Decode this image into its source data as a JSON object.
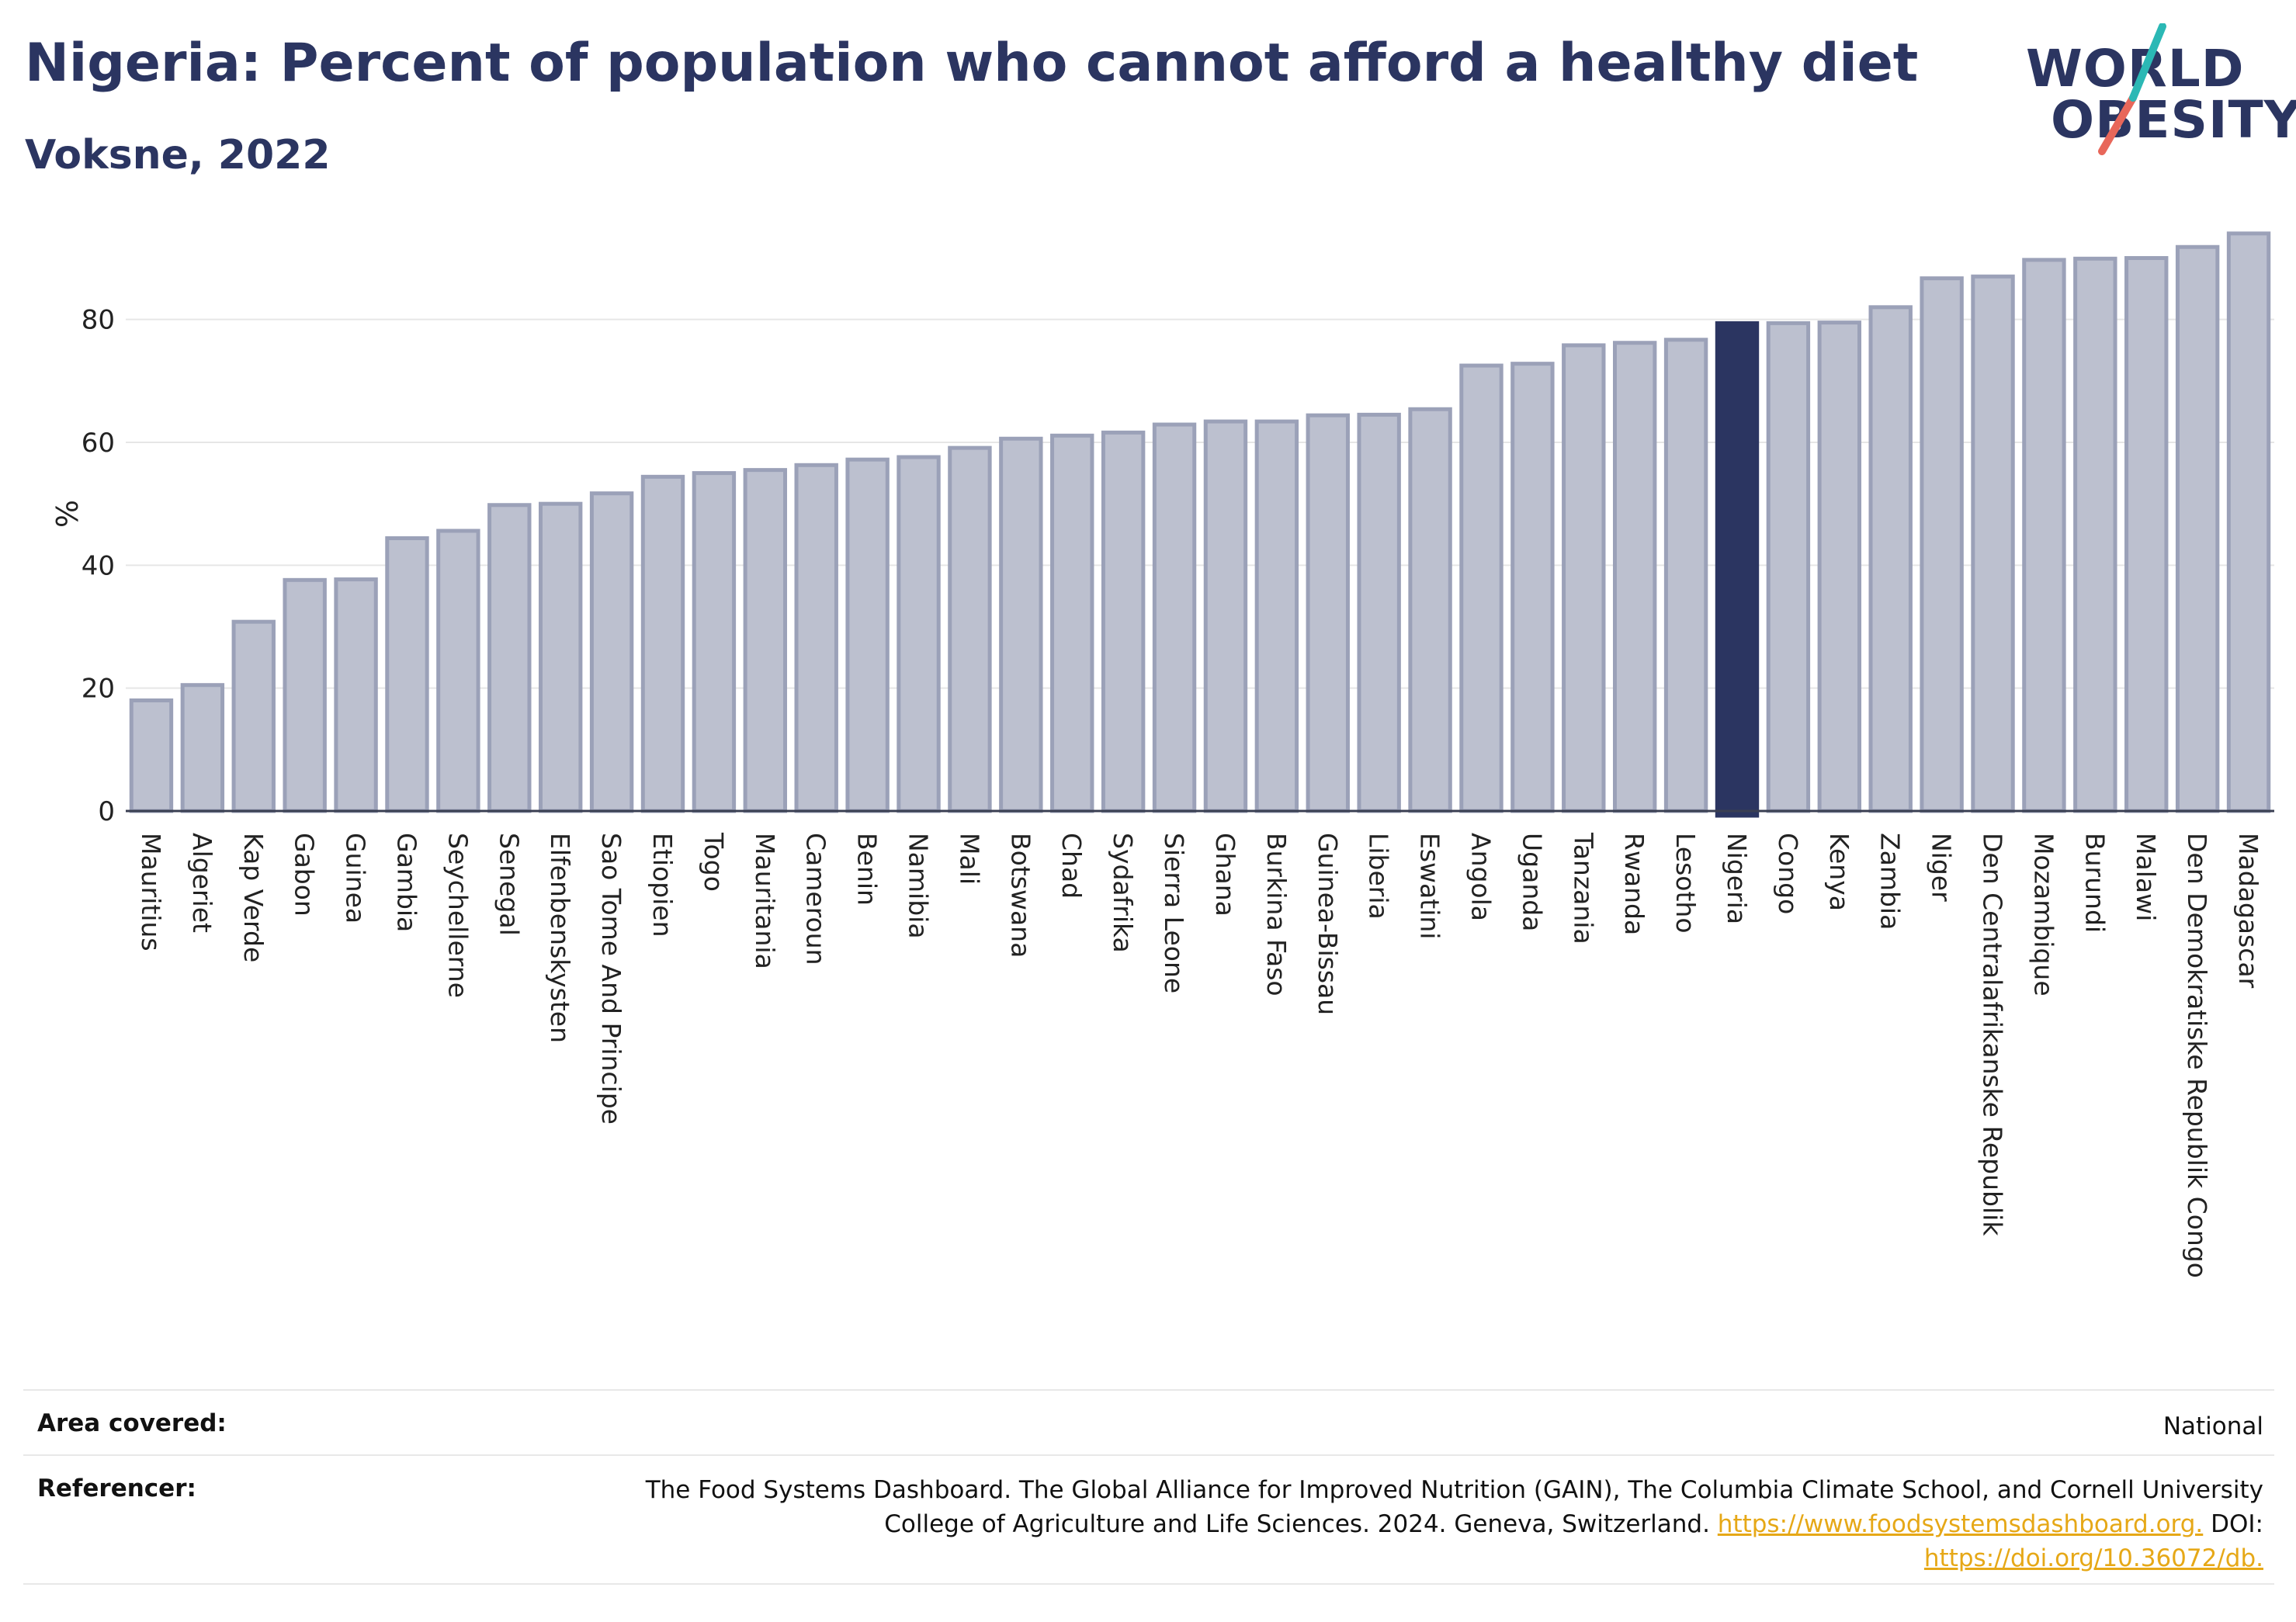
{
  "header": {
    "title": "Nigeria: Percent of population who cannot afford a healthy diet",
    "subtitle": "Voksne, 2022"
  },
  "logo": {
    "line1": "WORLD",
    "line2": "OBESITY"
  },
  "colors": {
    "bar": "#bcc0cf",
    "bar_stroke": "#9ba1b8",
    "highlight": "#2b3561",
    "title": "#2b3561",
    "link": "#e6a817"
  },
  "chart_data": {
    "type": "bar",
    "title": "Nigeria: Percent of population who cannot afford a healthy diet",
    "subtitle": "Voksne, 2022",
    "ylabel": "%",
    "xlabel": "",
    "ylim": [
      0,
      96
    ],
    "yticks": [
      0,
      20,
      40,
      60,
      80
    ],
    "grid": true,
    "highlight": "Nigeria",
    "categories": [
      "Mauritius",
      "Algeriet",
      "Kap Verde",
      "Gabon",
      "Guinea",
      "Gambia",
      "Seychellerne",
      "Senegal",
      "Elfenbenskysten",
      "Sao Tome And Principe",
      "Etiopien",
      "Togo",
      "Mauritania",
      "Cameroun",
      "Benin",
      "Namibia",
      "Mali",
      "Botswana",
      "Chad",
      "Sydafrika",
      "Sierra Leone",
      "Ghana",
      "Burkina Faso",
      "Guinea-Bissau",
      "Liberia",
      "Eswatini",
      "Angola",
      "Uganda",
      "Tanzania",
      "Rwanda",
      "Lesotho",
      "Nigeria",
      "Congo",
      "Kenya",
      "Zambia",
      "Niger",
      "Den Centralafrikanske Republik",
      "Mozambique",
      "Burundi",
      "Malawi",
      "Den Demokratiske Republik Congo",
      "Madagascar"
    ],
    "values": [
      18.0,
      20.5,
      30.8,
      37.6,
      37.7,
      44.4,
      45.6,
      49.8,
      50.0,
      51.7,
      54.4,
      55.0,
      55.5,
      56.3,
      57.2,
      57.6,
      59.1,
      60.6,
      61.1,
      61.6,
      62.9,
      63.4,
      63.4,
      64.4,
      64.5,
      65.4,
      72.5,
      72.8,
      75.8,
      76.2,
      76.7,
      79.4,
      79.4,
      79.5,
      82.0,
      86.7,
      87.0,
      89.7,
      89.9,
      90.0,
      91.8,
      94.0
    ]
  },
  "info": {
    "area_label": "Area covered:",
    "area_value": "National",
    "ref_label": "Referencer:",
    "ref_line1": "The Food Systems Dashboard. The Global Alliance for Improved Nutrition (GAIN), The Columbia Climate School, and Cornell University",
    "ref_line2_text": "College of Agriculture and Life Sciences. 2024. Geneva, Switzerland.",
    "ref_link1": "https://www.foodsystemsdashboard.org.",
    "ref_doi": "DOI:",
    "ref_link2": "https://doi.org/10.36072/db."
  }
}
